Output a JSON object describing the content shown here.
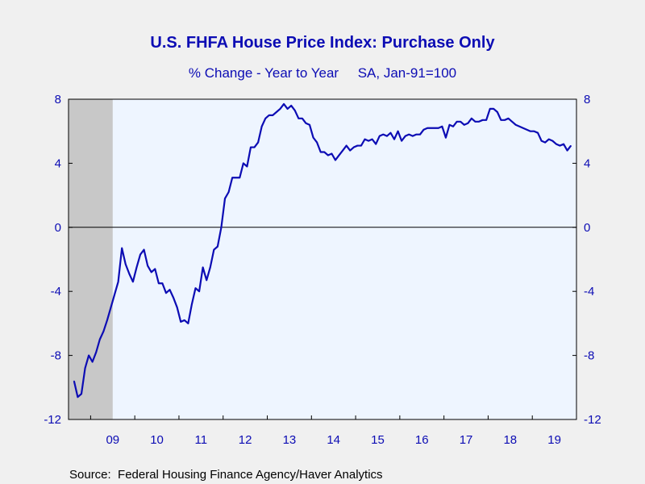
{
  "chart_data": {
    "type": "line",
    "title": "U.S. FHFA House Price Index: Purchase Only",
    "subtitle": "% Change - Year to Year     SA, Jan-91=100",
    "source": "Source:  Federal Housing Finance Agency/Haver Analytics",
    "xlabel": "",
    "ylabel": "",
    "ylim": [
      -12,
      8
    ],
    "y_ticks": [
      8,
      4,
      0,
      -4,
      -8,
      -12
    ],
    "y_tick_labels": [
      "8",
      "4",
      "0",
      "-4",
      "-8",
      "-12"
    ],
    "x_tick_labels": [
      "09",
      "10",
      "11",
      "12",
      "13",
      "14",
      "15",
      "16",
      "17",
      "18",
      "19"
    ],
    "x_range": [
      "2008-07",
      "2019-12"
    ],
    "recession_shading": [
      "2008-07",
      "2009-06"
    ],
    "zero_line": true,
    "grid": false,
    "colors": {
      "series": "#0c0cb4",
      "plot_background": "#eef5ff",
      "recession": "#c8c8c8",
      "page_background": "#f0f0f0",
      "text": "#0c0cb4"
    },
    "series": [
      {
        "start": "2008-08",
        "frequency": "monthly",
        "values": [
          -9.6,
          -10.6,
          -10.4,
          -8.8,
          -8.0,
          -8.4,
          -7.8,
          -7.0,
          -6.5,
          -5.8,
          -5.0,
          -4.2,
          -3.4,
          -1.3,
          -2.3,
          -2.9,
          -3.4,
          -2.5,
          -1.7,
          -1.4,
          -2.4,
          -2.8,
          -2.6,
          -3.5,
          -3.5,
          -4.1,
          -3.9,
          -4.4,
          -5.0,
          -5.9,
          -5.8,
          -6.0,
          -4.8,
          -3.8,
          -4.0,
          -2.5,
          -3.3,
          -2.5,
          -1.4,
          -1.2,
          0.0,
          1.8,
          2.2,
          3.1,
          3.1,
          3.1,
          4.0,
          3.8,
          5.0,
          5.0,
          5.3,
          6.3,
          6.8,
          7.0,
          7.0,
          7.2,
          7.4,
          7.7,
          7.4,
          7.6,
          7.3,
          6.8,
          6.8,
          6.5,
          6.4,
          5.6,
          5.3,
          4.7,
          4.7,
          4.5,
          4.6,
          4.2,
          4.5,
          4.8,
          5.1,
          4.8,
          5.0,
          5.1,
          5.1,
          5.5,
          5.4,
          5.5,
          5.2,
          5.7,
          5.8,
          5.7,
          5.9,
          5.5,
          6.0,
          5.4,
          5.7,
          5.8,
          5.7,
          5.8,
          5.8,
          6.1,
          6.2,
          6.2,
          6.2,
          6.2,
          6.3,
          5.6,
          6.4,
          6.3,
          6.6,
          6.6,
          6.4,
          6.5,
          6.8,
          6.6,
          6.6,
          6.7,
          6.7,
          7.4,
          7.4,
          7.2,
          6.7,
          6.7,
          6.8,
          6.6,
          6.4,
          6.3,
          6.2,
          6.1,
          6.0,
          6.0,
          5.9,
          5.4,
          5.3,
          5.5,
          5.4,
          5.2,
          5.1,
          5.2,
          4.8,
          5.1
        ]
      }
    ]
  }
}
